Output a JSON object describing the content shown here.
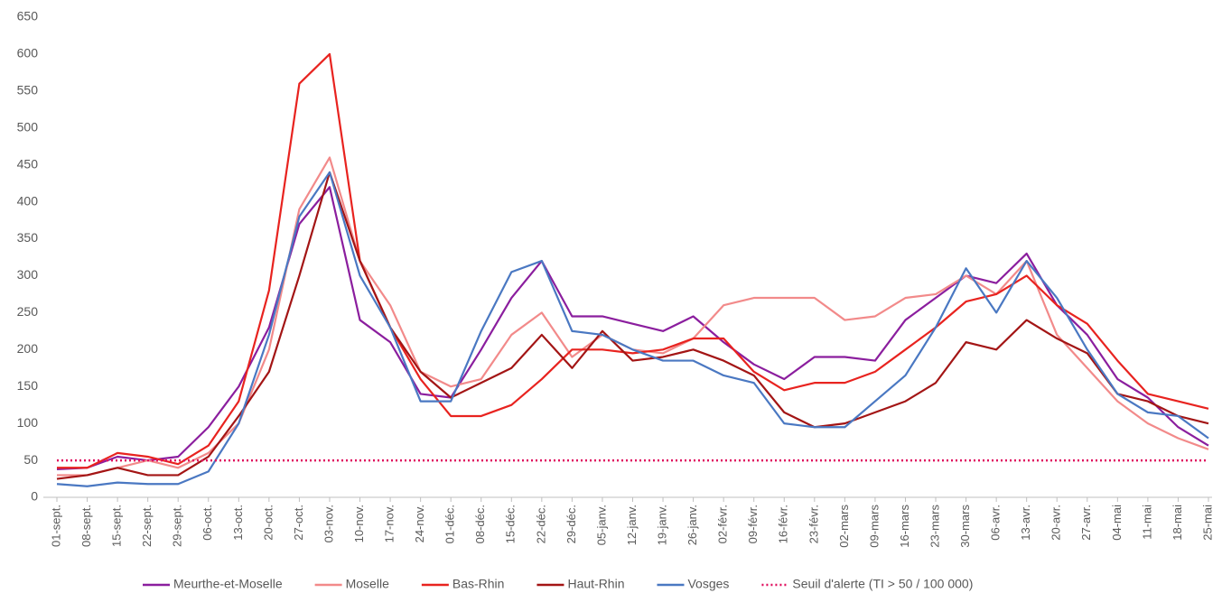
{
  "chart_data": {
    "type": "line",
    "categories": [
      "01-sept.",
      "08-sept.",
      "15-sept.",
      "22-sept.",
      "29-sept.",
      "06-oct.",
      "13-oct.",
      "20-oct.",
      "27-oct.",
      "03-nov.",
      "10-nov.",
      "17-nov.",
      "24-nov.",
      "01-déc.",
      "08-déc.",
      "15-déc.",
      "22-déc.",
      "29-déc.",
      "05-janv.",
      "12-janv.",
      "19-janv.",
      "26-janv.",
      "02-févr.",
      "09-févr.",
      "16-févr.",
      "23-févr.",
      "02-mars",
      "09-mars",
      "16-mars",
      "23-mars",
      "30-mars",
      "06-avr.",
      "13-avr.",
      "20-avr.",
      "27-avr.",
      "04-mai",
      "11-mai",
      "18-mai",
      "25-mai"
    ],
    "series": [
      {
        "name": "Meurthe-et-Moselle",
        "color": "#8b1e9e",
        "values": [
          38,
          40,
          55,
          50,
          55,
          95,
          150,
          230,
          370,
          420,
          240,
          210,
          140,
          135,
          200,
          270,
          320,
          245,
          245,
          235,
          225,
          245,
          210,
          180,
          160,
          190,
          190,
          185,
          240,
          270,
          300,
          290,
          330,
          260,
          220,
          160,
          135,
          95,
          70
        ]
      },
      {
        "name": "Moselle",
        "color": "#f28a8a",
        "values": [
          30,
          30,
          40,
          50,
          40,
          60,
          100,
          200,
          390,
          460,
          320,
          260,
          170,
          150,
          160,
          220,
          250,
          190,
          220,
          200,
          195,
          215,
          260,
          270,
          270,
          270,
          240,
          245,
          270,
          275,
          300,
          275,
          320,
          220,
          175,
          130,
          100,
          80,
          65
        ]
      },
      {
        "name": "Bas-Rhin",
        "color": "#e8231f",
        "values": [
          40,
          40,
          60,
          55,
          45,
          70,
          130,
          280,
          560,
          600,
          320,
          230,
          160,
          110,
          110,
          125,
          160,
          200,
          200,
          195,
          200,
          215,
          215,
          170,
          145,
          155,
          155,
          170,
          200,
          230,
          265,
          275,
          300,
          260,
          235,
          185,
          140,
          130,
          120
        ]
      },
      {
        "name": "Haut-Rhin",
        "color": "#a31515",
        "values": [
          25,
          30,
          40,
          30,
          30,
          55,
          110,
          170,
          300,
          440,
          320,
          230,
          170,
          135,
          155,
          175,
          220,
          175,
          225,
          185,
          190,
          200,
          185,
          165,
          115,
          95,
          100,
          115,
          130,
          155,
          210,
          200,
          240,
          215,
          195,
          140,
          130,
          110,
          100
        ]
      },
      {
        "name": "Vosges",
        "color": "#4a78c2",
        "values": [
          18,
          15,
          20,
          18,
          18,
          35,
          100,
          220,
          380,
          440,
          300,
          230,
          130,
          130,
          225,
          305,
          320,
          225,
          220,
          200,
          185,
          185,
          165,
          155,
          100,
          95,
          95,
          130,
          165,
          230,
          310,
          250,
          320,
          270,
          200,
          140,
          115,
          110,
          80
        ]
      },
      {
        "name": "Seuil d'alerte (TI > 50 / 100 000)",
        "color": "#e0105f",
        "style": "dotted",
        "values": [
          50,
          50,
          50,
          50,
          50,
          50,
          50,
          50,
          50,
          50,
          50,
          50,
          50,
          50,
          50,
          50,
          50,
          50,
          50,
          50,
          50,
          50,
          50,
          50,
          50,
          50,
          50,
          50,
          50,
          50,
          50,
          50,
          50,
          50,
          50,
          50,
          50,
          50,
          50
        ]
      }
    ],
    "ylim": [
      0,
      650
    ],
    "yticks": [
      0,
      50,
      100,
      150,
      200,
      250,
      300,
      350,
      400,
      450,
      500,
      550,
      600,
      650
    ]
  }
}
